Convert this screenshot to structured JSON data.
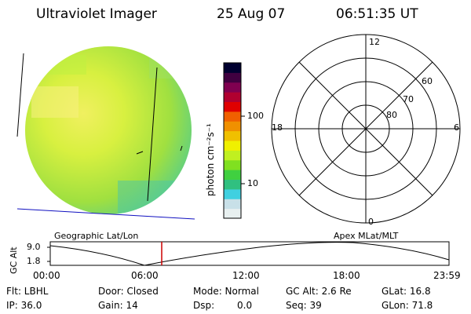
{
  "header": {
    "instrument": "Ultraviolet Imager",
    "date": "25 Aug 07",
    "time": "06:51:35 UT"
  },
  "colorbar": {
    "label": "photon cm⁻²s⁻¹",
    "ticks": [
      "100",
      "10"
    ],
    "colors": [
      "#e8f0f0",
      "#c8e0e8",
      "#40d0e0",
      "#30c080",
      "#40d040",
      "#80e020",
      "#c0f020",
      "#f0f000",
      "#f0c000",
      "#f09000",
      "#f06000",
      "#e00000",
      "#b00030",
      "#800050",
      "#400040",
      "#000030"
    ]
  },
  "polar": {
    "lat_labels": [
      "60",
      "70",
      "80"
    ],
    "mlt_labels": {
      "top": "12",
      "left": "18",
      "right": "6",
      "bottom": "0"
    }
  },
  "timeline": {
    "y_label": "GC Alt",
    "y_ticks": [
      "9.0",
      "1.8"
    ],
    "left_title": "Geographic Lat/Lon",
    "right_title": "Apex MLat/MLT",
    "x_ticks": [
      "00:00",
      "06:00",
      "12:00",
      "18:00",
      "23:59"
    ],
    "marker_color": "#cc0000"
  },
  "info": {
    "filter": "Flt: LBHL",
    "ip": "IP: 36.0",
    "door": "Door: Closed",
    "gain": "Gain: 14",
    "mode": "Mode: Normal",
    "dsp": "Dsp:",
    "dsp_value": "0.0",
    "gc_alt": "GC Alt: 2.6 Re",
    "seq": "Seq: 39",
    "glat": "GLat: 16.8",
    "glon": "GLon: 71.8"
  }
}
